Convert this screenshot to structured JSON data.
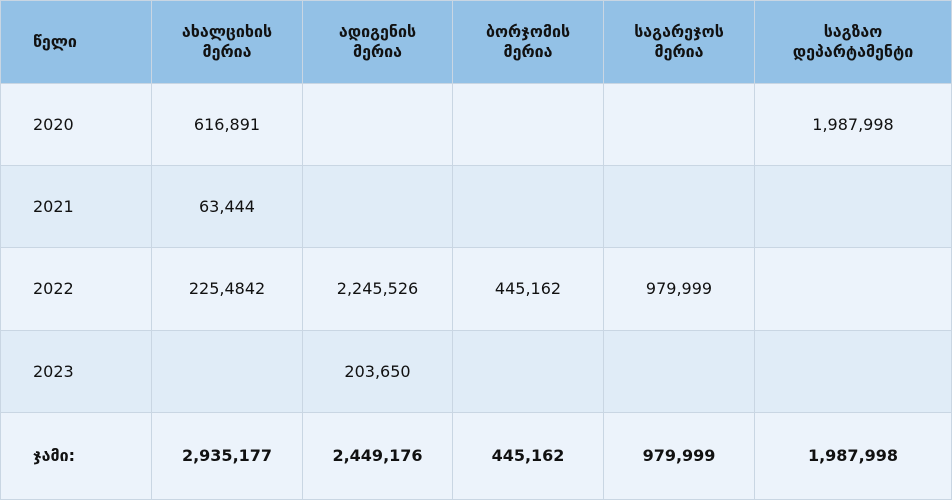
{
  "table": {
    "header": [
      [
        "წელი"
      ],
      [
        "ახალციხის",
        "მერია"
      ],
      [
        "ადიგენის",
        "მერია"
      ],
      [
        "ბორჯომის",
        "მერია"
      ],
      [
        "საგარეჯოს",
        "მერია"
      ],
      [
        "საგზაო",
        "დეპარტამენტი"
      ]
    ],
    "rows": [
      [
        "2020",
        "616,891",
        null,
        null,
        null,
        "1,987,998"
      ],
      [
        "2021",
        "63,444",
        null,
        null,
        null,
        null
      ],
      [
        "2022",
        "225,4842",
        "2,245,526",
        "445,162",
        "979,999",
        null
      ],
      [
        "2023",
        null,
        "203,650",
        null,
        null,
        null
      ]
    ],
    "total": [
      "ჯამი:",
      "2,935,177",
      "2,449,176",
      "445,162",
      "979,999",
      "1,987,998"
    ]
  }
}
